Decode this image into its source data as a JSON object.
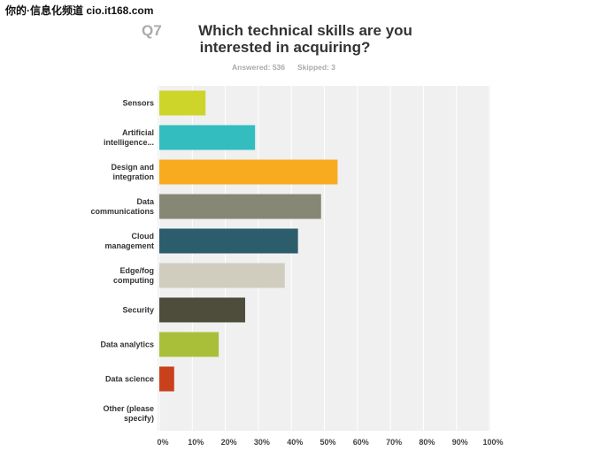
{
  "watermark": "你的·信息化频道 cio.it168.com",
  "chart_data": {
    "type": "bar",
    "orientation": "horizontal",
    "question_number": "Q7",
    "title": "Which technical skills are you interested in acquiring?",
    "answered": "Answered: 536",
    "skipped": "Skipped: 3",
    "categories": [
      "Sensors",
      "Artificial intelligence...",
      "Design and integration",
      "Data communications",
      "Cloud management",
      "Edge/fog computing",
      "Security",
      "Data analytics",
      "Data science",
      "Other (please specify)"
    ],
    "values": [
      14,
      29,
      54,
      49,
      42,
      38,
      26,
      18,
      4.5,
      0
    ],
    "colors": [
      "#cdd52a",
      "#33bdbf",
      "#f9ab1f",
      "#868774",
      "#2c5d6c",
      "#d0cdbf",
      "#4e4d3c",
      "#a9bf39",
      "#c9411c",
      "#999999"
    ],
    "xlim": [
      0,
      100
    ],
    "xticks": [
      {
        "value": 0,
        "label": "0%"
      },
      {
        "value": 10,
        "label": "10%"
      },
      {
        "value": 20,
        "label": "20%"
      },
      {
        "value": 30,
        "label": "30%"
      },
      {
        "value": 40,
        "label": "40%"
      },
      {
        "value": 50,
        "label": "50%"
      },
      {
        "value": 60,
        "label": "60%"
      },
      {
        "value": 70,
        "label": "70%"
      },
      {
        "value": 80,
        "label": "80%"
      },
      {
        "value": 90,
        "label": "90%"
      },
      {
        "value": 100,
        "label": "100%"
      }
    ],
    "grid": true
  }
}
